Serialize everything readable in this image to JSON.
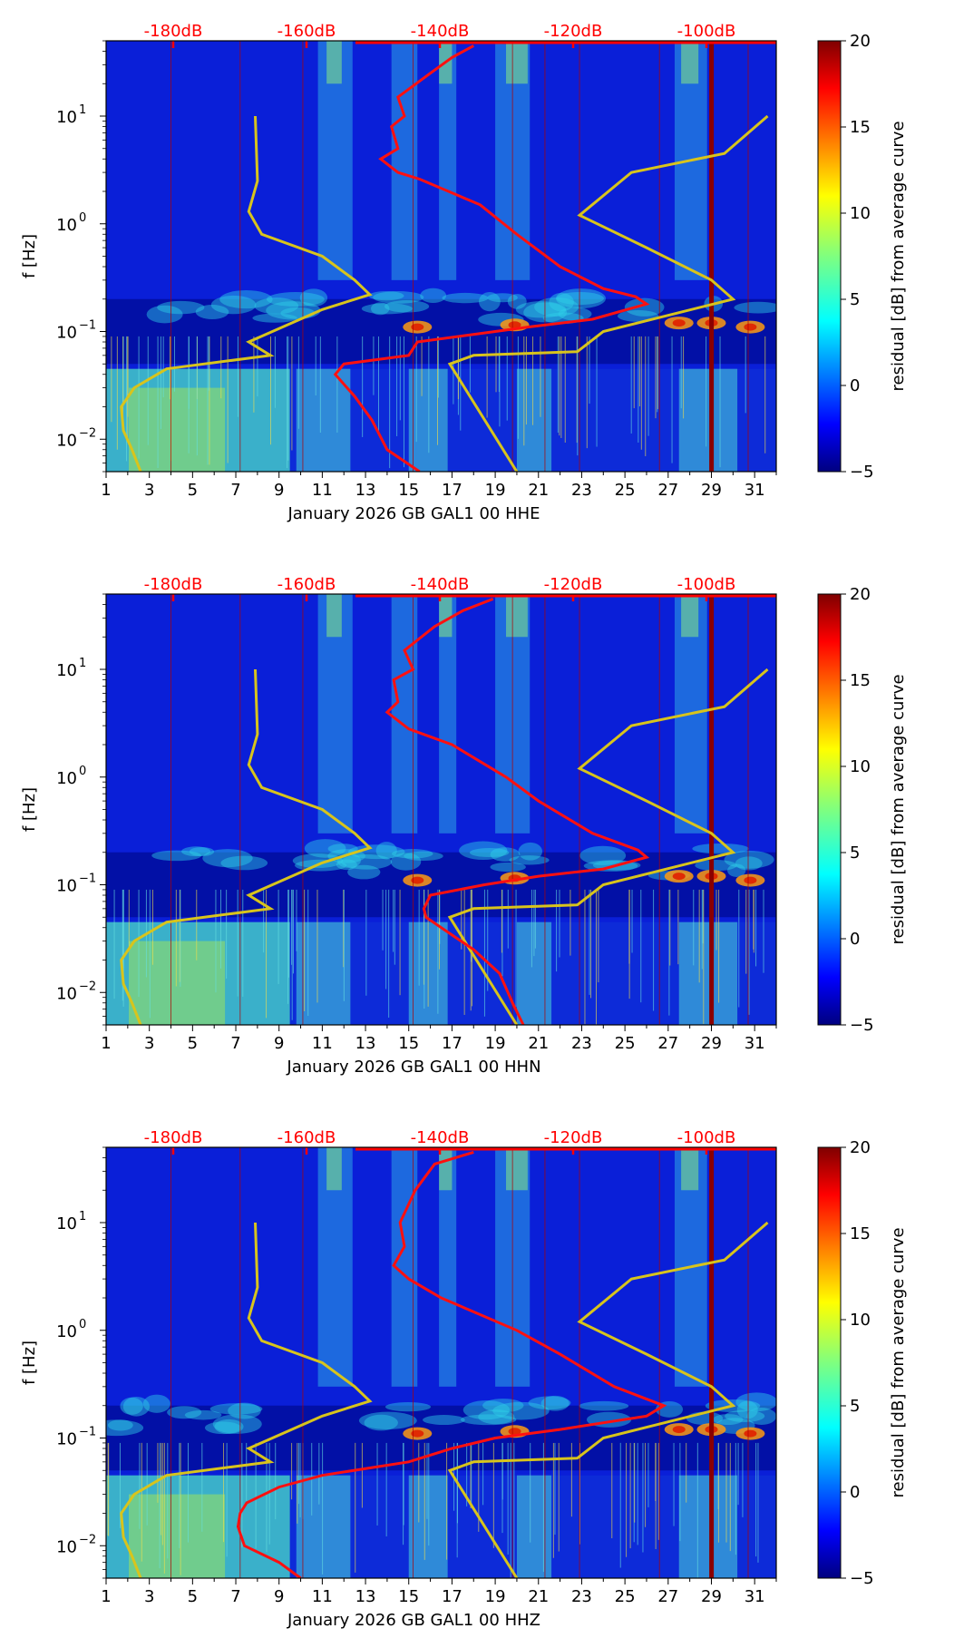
{
  "chart_data": [
    {
      "type": "heatmap",
      "xlabel": "January 2026 GB GAL1 00 HHE",
      "ylabel": "f [Hz]",
      "x_ticks": [
        "1",
        "3",
        "5",
        "7",
        "9",
        "11",
        "13",
        "15",
        "17",
        "19",
        "21",
        "23",
        "25",
        "27",
        "29",
        "31"
      ],
      "y_ticks": [
        {
          "v": 0.01,
          "base": "10",
          "exp": "−2"
        },
        {
          "v": 0.1,
          "base": "10",
          "exp": "−1"
        },
        {
          "v": 1,
          "base": "10",
          "exp": "0"
        },
        {
          "v": 10,
          "base": "10",
          "exp": "1"
        }
      ],
      "xlim": [
        1,
        32
      ],
      "ylim": [
        0.005,
        50
      ],
      "top_axis": {
        "labels": [
          "-180dB",
          "-160dB",
          "-140dB",
          "-120dB",
          "-100dB"
        ],
        "values": [
          -180,
          -160,
          -140,
          -120,
          -100
        ],
        "color": "#ff0000"
      },
      "colorbar": {
        "label": "residual [dB] from average curve",
        "ticks": [
          "20",
          "15",
          "10",
          "5",
          "0",
          "−5"
        ],
        "range": [
          -5,
          20
        ],
        "colormap": "jet"
      },
      "noise_model_low": [
        [
          0.005,
          2.6
        ],
        [
          0.008,
          2.2
        ],
        [
          0.012,
          1.8
        ],
        [
          0.02,
          1.7
        ],
        [
          0.03,
          2.3
        ],
        [
          0.045,
          3.8
        ],
        [
          0.06,
          8.6
        ],
        [
          0.08,
          7.6
        ],
        [
          0.16,
          11.0
        ],
        [
          0.22,
          13.2
        ],
        [
          0.3,
          12.5
        ],
        [
          0.5,
          11.0
        ],
        [
          0.8,
          8.2
        ],
        [
          1.3,
          7.6
        ],
        [
          2.5,
          8.0
        ],
        [
          10,
          7.9
        ]
      ],
      "noise_model_high": [
        [
          0.005,
          20.0
        ],
        [
          0.05,
          16.9
        ],
        [
          0.06,
          18.0
        ],
        [
          0.065,
          22.8
        ],
        [
          0.1,
          24.0
        ],
        [
          0.2,
          30.0
        ],
        [
          0.3,
          29.0
        ],
        [
          0.6,
          26.0
        ],
        [
          1.2,
          22.9
        ],
        [
          3.0,
          25.3
        ],
        [
          4.5,
          29.6
        ],
        [
          10,
          31.6
        ]
      ],
      "average_curve": [
        [
          0.005,
          15.5
        ],
        [
          0.008,
          14.0
        ],
        [
          0.015,
          13.3
        ],
        [
          0.025,
          12.5
        ],
        [
          0.04,
          11.6
        ],
        [
          0.05,
          12.0
        ],
        [
          0.06,
          15.0
        ],
        [
          0.08,
          15.4
        ],
        [
          0.1,
          19.0
        ],
        [
          0.11,
          20.5
        ],
        [
          0.13,
          23.5
        ],
        [
          0.18,
          26.0
        ],
        [
          0.21,
          25.5
        ],
        [
          0.25,
          24.0
        ],
        [
          0.4,
          22.0
        ],
        [
          0.8,
          20.0
        ],
        [
          1.5,
          18.3
        ],
        [
          2.6,
          15.5
        ],
        [
          3.0,
          14.5
        ],
        [
          4.0,
          13.7
        ],
        [
          5.0,
          14.5
        ],
        [
          8.0,
          14.2
        ],
        [
          10,
          14.8
        ],
        [
          15,
          14.5
        ],
        [
          25,
          16.0
        ],
        [
          35,
          17.0
        ],
        [
          45,
          18.0
        ]
      ]
    },
    {
      "type": "heatmap",
      "xlabel": "January 2026 GB GAL1 00 HHN",
      "ylabel": "f [Hz]",
      "x_ticks": [
        "1",
        "3",
        "5",
        "7",
        "9",
        "11",
        "13",
        "15",
        "17",
        "19",
        "21",
        "23",
        "25",
        "27",
        "29",
        "31"
      ],
      "y_ticks": [
        {
          "v": 0.01,
          "base": "10",
          "exp": "−2"
        },
        {
          "v": 0.1,
          "base": "10",
          "exp": "−1"
        },
        {
          "v": 1,
          "base": "10",
          "exp": "0"
        },
        {
          "v": 10,
          "base": "10",
          "exp": "1"
        }
      ],
      "xlim": [
        1,
        32
      ],
      "ylim": [
        0.005,
        50
      ],
      "top_axis": {
        "labels": [
          "-180dB",
          "-160dB",
          "-140dB",
          "-120dB",
          "-100dB"
        ],
        "values": [
          -180,
          -160,
          -140,
          -120,
          -100
        ],
        "color": "#ff0000"
      },
      "colorbar": {
        "label": "residual [dB] from average curve",
        "ticks": [
          "20",
          "15",
          "10",
          "5",
          "0",
          "−5"
        ],
        "range": [
          -5,
          20
        ],
        "colormap": "jet"
      },
      "noise_model_low": [
        [
          0.005,
          2.6
        ],
        [
          0.008,
          2.2
        ],
        [
          0.012,
          1.8
        ],
        [
          0.02,
          1.7
        ],
        [
          0.03,
          2.3
        ],
        [
          0.045,
          3.8
        ],
        [
          0.06,
          8.6
        ],
        [
          0.08,
          7.6
        ],
        [
          0.16,
          11.0
        ],
        [
          0.22,
          13.2
        ],
        [
          0.3,
          12.5
        ],
        [
          0.5,
          11.0
        ],
        [
          0.8,
          8.2
        ],
        [
          1.3,
          7.6
        ],
        [
          2.5,
          8.0
        ],
        [
          10,
          7.9
        ]
      ],
      "noise_model_high": [
        [
          0.005,
          20.0
        ],
        [
          0.05,
          16.9
        ],
        [
          0.06,
          18.0
        ],
        [
          0.065,
          22.8
        ],
        [
          0.1,
          24.0
        ],
        [
          0.2,
          30.0
        ],
        [
          0.3,
          29.0
        ],
        [
          0.6,
          26.0
        ],
        [
          1.2,
          22.9
        ],
        [
          3.0,
          25.3
        ],
        [
          4.5,
          29.6
        ],
        [
          10,
          31.6
        ]
      ],
      "average_curve": [
        [
          0.005,
          20.3
        ],
        [
          0.008,
          19.8
        ],
        [
          0.015,
          19.2
        ],
        [
          0.025,
          18.0
        ],
        [
          0.04,
          16.5
        ],
        [
          0.05,
          15.8
        ],
        [
          0.06,
          15.7
        ],
        [
          0.08,
          16.0
        ],
        [
          0.1,
          18.5
        ],
        [
          0.12,
          21.0
        ],
        [
          0.14,
          24.0
        ],
        [
          0.18,
          26.0
        ],
        [
          0.21,
          25.6
        ],
        [
          0.3,
          23.5
        ],
        [
          0.6,
          21.0
        ],
        [
          1.0,
          19.5
        ],
        [
          2.0,
          17.0
        ],
        [
          2.8,
          15.0
        ],
        [
          4.0,
          14.0
        ],
        [
          5.0,
          14.5
        ],
        [
          8.0,
          14.3
        ],
        [
          10,
          15.2
        ],
        [
          15,
          14.8
        ],
        [
          25,
          16.2
        ],
        [
          35,
          17.5
        ],
        [
          45,
          18.9
        ]
      ]
    },
    {
      "type": "heatmap",
      "xlabel": "January 2026 GB GAL1 00 HHZ",
      "ylabel": "f [Hz]",
      "x_ticks": [
        "1",
        "3",
        "5",
        "7",
        "9",
        "11",
        "13",
        "15",
        "17",
        "19",
        "21",
        "23",
        "25",
        "27",
        "29",
        "31"
      ],
      "y_ticks": [
        {
          "v": 0.01,
          "base": "10",
          "exp": "−2"
        },
        {
          "v": 0.1,
          "base": "10",
          "exp": "−1"
        },
        {
          "v": 1,
          "base": "10",
          "exp": "0"
        },
        {
          "v": 10,
          "base": "10",
          "exp": "1"
        }
      ],
      "xlim": [
        1,
        32
      ],
      "ylim": [
        0.005,
        50
      ],
      "top_axis": {
        "labels": [
          "-180dB",
          "-160dB",
          "-140dB",
          "-120dB",
          "-100dB"
        ],
        "values": [
          -180,
          -160,
          -140,
          -120,
          -100
        ],
        "color": "#ff0000"
      },
      "colorbar": {
        "label": "residual [dB] from average curve",
        "ticks": [
          "20",
          "15",
          "10",
          "5",
          "0",
          "−5"
        ],
        "range": [
          -5,
          20
        ],
        "colormap": "jet"
      },
      "noise_model_low": [
        [
          0.005,
          2.6
        ],
        [
          0.008,
          2.2
        ],
        [
          0.012,
          1.8
        ],
        [
          0.02,
          1.7
        ],
        [
          0.03,
          2.3
        ],
        [
          0.045,
          3.8
        ],
        [
          0.06,
          8.6
        ],
        [
          0.08,
          7.6
        ],
        [
          0.16,
          11.0
        ],
        [
          0.22,
          13.2
        ],
        [
          0.3,
          12.5
        ],
        [
          0.5,
          11.0
        ],
        [
          0.8,
          8.2
        ],
        [
          1.3,
          7.6
        ],
        [
          2.5,
          8.0
        ],
        [
          10,
          7.9
        ]
      ],
      "noise_model_high": [
        [
          0.005,
          20.0
        ],
        [
          0.05,
          16.9
        ],
        [
          0.06,
          18.0
        ],
        [
          0.065,
          22.8
        ],
        [
          0.1,
          24.0
        ],
        [
          0.2,
          30.0
        ],
        [
          0.3,
          29.0
        ],
        [
          0.6,
          26.0
        ],
        [
          1.2,
          22.9
        ],
        [
          3.0,
          25.3
        ],
        [
          4.5,
          29.6
        ],
        [
          10,
          31.6
        ]
      ],
      "average_curve": [
        [
          0.005,
          10.0
        ],
        [
          0.007,
          9.0
        ],
        [
          0.01,
          7.4
        ],
        [
          0.015,
          7.1
        ],
        [
          0.02,
          7.2
        ],
        [
          0.025,
          7.5
        ],
        [
          0.035,
          9.0
        ],
        [
          0.045,
          11.0
        ],
        [
          0.06,
          15.0
        ],
        [
          0.08,
          17.0
        ],
        [
          0.1,
          19.0
        ],
        [
          0.12,
          22.0
        ],
        [
          0.16,
          26.0
        ],
        [
          0.2,
          26.8
        ],
        [
          0.3,
          24.5
        ],
        [
          0.6,
          22.0
        ],
        [
          1.0,
          20.0
        ],
        [
          2.0,
          16.5
        ],
        [
          3.0,
          15.0
        ],
        [
          4.0,
          14.3
        ],
        [
          6.0,
          14.8
        ],
        [
          10,
          14.6
        ],
        [
          20,
          15.3
        ],
        [
          35,
          16.2
        ],
        [
          45,
          18.0
        ]
      ]
    }
  ]
}
